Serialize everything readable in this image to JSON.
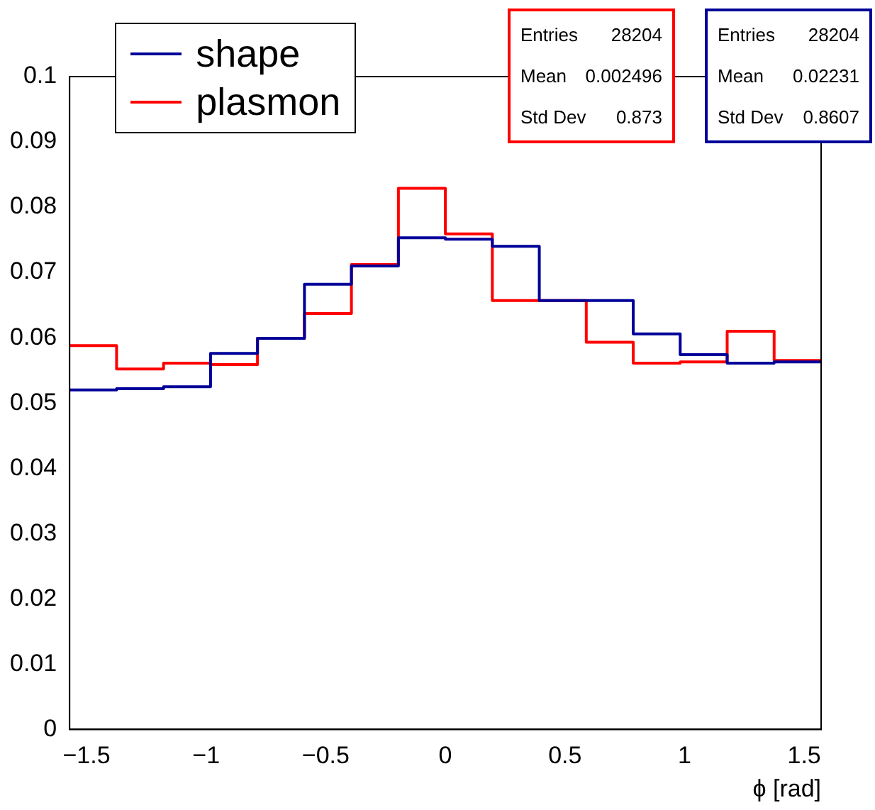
{
  "chart_data": {
    "type": "histogram",
    "xlabel": "ϕ [rad]",
    "bins": [
      -1.5708,
      -1.3744,
      -1.1781,
      -0.9817,
      -0.7854,
      -0.589,
      -0.3927,
      -0.1963,
      0,
      0.1963,
      0.3927,
      0.589,
      0.7854,
      0.9817,
      1.1781,
      1.3744,
      1.5708
    ],
    "series": [
      {
        "name": "shape",
        "color": "#000099",
        "values": [
          0.052,
          0.0522,
          0.0525,
          0.0576,
          0.0599,
          0.0682,
          0.071,
          0.0753,
          0.0751,
          0.074,
          0.0657,
          0.0657,
          0.0606,
          0.0574,
          0.0561,
          0.0563
        ]
      },
      {
        "name": "plasmon",
        "color": "#ff0000",
        "values": [
          0.0588,
          0.0552,
          0.0561,
          0.0559,
          0.0599,
          0.0637,
          0.0712,
          0.0829,
          0.0759,
          0.0657,
          0.0657,
          0.0593,
          0.0561,
          0.0563,
          0.061,
          0.0565
        ]
      }
    ],
    "xlim": [
      -1.5708,
      1.5708
    ],
    "xticks": [
      {
        "value": -1.5,
        "label": "−1.5"
      },
      {
        "value": -1,
        "label": "−1"
      },
      {
        "value": -0.5,
        "label": "−0.5"
      },
      0,
      0.5,
      1,
      1.5
    ],
    "ylim": [
      0,
      0.1
    ],
    "yticks": [
      0,
      0.01,
      0.02,
      0.03,
      0.04,
      0.05,
      0.06,
      0.07,
      0.08,
      0.09,
      0.1
    ],
    "legend": "top left",
    "annotations": [
      "Entries 28204",
      "Mean 0.002496",
      "Std Dev 0.873",
      "Entries 28204",
      "Mean 0.02231",
      "Std Dev 0.8607"
    ]
  }
}
